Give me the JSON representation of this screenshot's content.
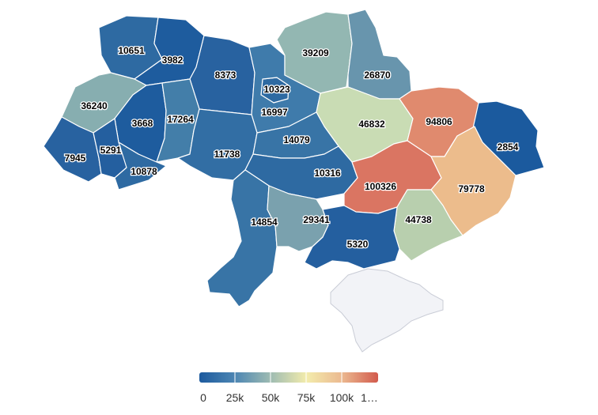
{
  "map": {
    "regions": [
      {
        "id": "volyn",
        "value": 10651,
        "label": "10651",
        "color": "#2e6aa2"
      },
      {
        "id": "rivne",
        "value": 3982,
        "label": "3982",
        "color": "#1e5c9e"
      },
      {
        "id": "zhytomyr",
        "value": 8373,
        "label": "8373",
        "color": "#2862a0"
      },
      {
        "id": "kyiv-city",
        "value": 10323,
        "label": "10323",
        "color": "#2e6aa2"
      },
      {
        "id": "kyiv-oblast",
        "value": 16997,
        "label": "16997",
        "color": "#3f7bab"
      },
      {
        "id": "chernihiv",
        "value": 39209,
        "label": "39209",
        "color": "#93b7b2"
      },
      {
        "id": "sumy",
        "value": 26870,
        "label": "26870",
        "color": "#6895ad"
      },
      {
        "id": "lviv",
        "value": 36240,
        "label": "36240",
        "color": "#87aeb0"
      },
      {
        "id": "ternopil",
        "value": 3668,
        "label": "3668",
        "color": "#1e5c9e"
      },
      {
        "id": "khmelnytskyi",
        "value": 17264,
        "label": "17264",
        "color": "#437ea9"
      },
      {
        "id": "poltava",
        "value": 46832,
        "label": "46832",
        "color": "#c9dcb4"
      },
      {
        "id": "kharkiv",
        "value": 94806,
        "label": "94806",
        "color": "#e08a6e"
      },
      {
        "id": "luhansk",
        "value": 2854,
        "label": "2854",
        "color": "#1b5a9e"
      },
      {
        "id": "zakarpattia",
        "value": 7945,
        "label": "7945",
        "color": "#2862a0"
      },
      {
        "id": "ivano-frankivsk",
        "value": 5291,
        "label": "5291",
        "color": "#245f9f"
      },
      {
        "id": "chernivtsi",
        "value": 10878,
        "label": "10878",
        "color": "#2e6aa2"
      },
      {
        "id": "vinnytsia",
        "value": 11738,
        "label": "11738",
        "color": "#326ea4"
      },
      {
        "id": "cherkasy",
        "value": 14079,
        "label": "14079",
        "color": "#3874a6"
      },
      {
        "id": "kirovohrad",
        "value": 10316,
        "label": "10316",
        "color": "#2e6aa2"
      },
      {
        "id": "dnipropetrovsk",
        "value": 100326,
        "label": "100326",
        "color": "#da7562"
      },
      {
        "id": "donetsk",
        "value": 79778,
        "label": "79778",
        "color": "#ecbc8c"
      },
      {
        "id": "odesa",
        "value": 14854,
        "label": "14854",
        "color": "#3874a6"
      },
      {
        "id": "mykolaiv",
        "value": 29341,
        "label": "29341",
        "color": "#7aa1ae"
      },
      {
        "id": "zaporizhzhia",
        "value": 44738,
        "label": "44738",
        "color": "#b8cfae"
      },
      {
        "id": "kherson",
        "value": 5320,
        "label": "5320",
        "color": "#245f9f"
      }
    ],
    "crimea_color": "#f2f3f7"
  },
  "legend": {
    "ticks": [
      "0",
      "25k",
      "50k",
      "75k",
      "100k",
      "1…"
    ],
    "stops": [
      "#1c5a9e",
      "#4d86b3",
      "#9fbcb2",
      "#f3ecac",
      "#ebb88f",
      "#d25a4c"
    ]
  }
}
